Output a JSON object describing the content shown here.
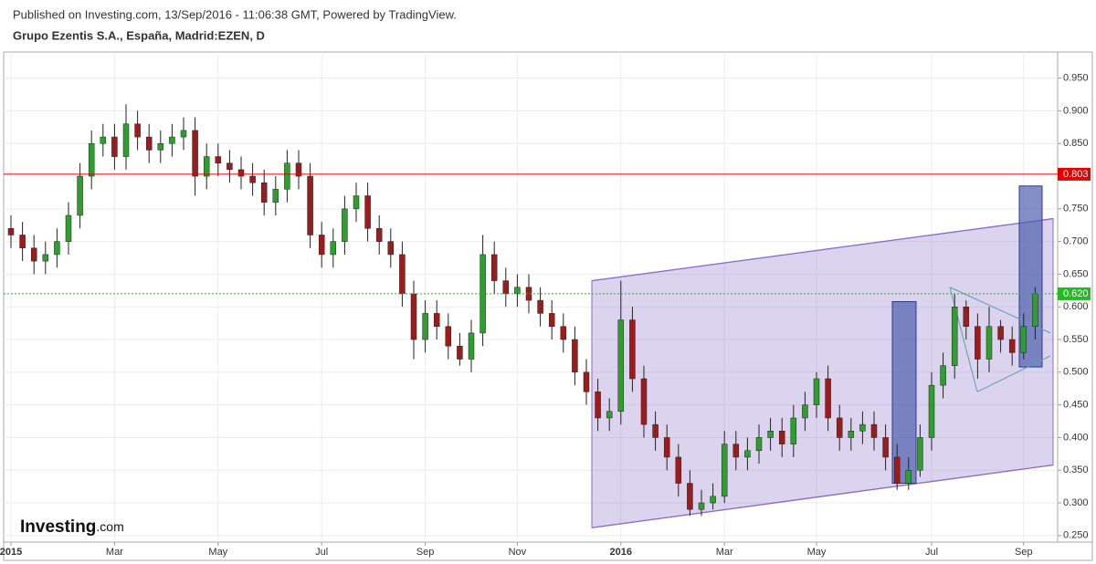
{
  "header": {
    "published": "Published on Investing.com, 13/Sep/2016 - 11:06:38 GMT, Powered by TradingView.",
    "symbol": "Grupo Ezentis S.A., España, Madrid:EZEN, D"
  },
  "logo": {
    "brand": "Investing",
    "suffix": ".com"
  },
  "chart_data": {
    "type": "candlestick",
    "categories": [
      "2015",
      null,
      null,
      null,
      null,
      null,
      null,
      null,
      null,
      "Mar",
      null,
      null,
      null,
      null,
      null,
      null,
      null,
      null,
      "May",
      null,
      null,
      null,
      null,
      null,
      null,
      null,
      null,
      "Jul",
      null,
      null,
      null,
      null,
      null,
      null,
      null,
      null,
      "Sep",
      null,
      null,
      null,
      null,
      null,
      null,
      null,
      "Nov",
      null,
      null,
      null,
      null,
      null,
      null,
      null,
      null,
      "2016",
      null,
      null,
      null,
      null,
      null,
      null,
      null,
      null,
      "Mar",
      null,
      null,
      null,
      null,
      null,
      null,
      null,
      "May",
      null,
      null,
      null,
      null,
      null,
      null,
      null,
      null,
      null,
      "Jul",
      null,
      null,
      null,
      null,
      null,
      null,
      null,
      "Sep",
      null
    ],
    "open": [
      0.72,
      0.71,
      0.69,
      0.67,
      0.68,
      0.7,
      0.74,
      0.8,
      0.85,
      0.86,
      0.83,
      0.88,
      0.86,
      0.84,
      0.85,
      0.86,
      0.87,
      0.8,
      0.83,
      0.82,
      0.81,
      0.8,
      0.79,
      0.76,
      0.78,
      0.82,
      0.8,
      0.71,
      0.68,
      0.7,
      0.75,
      0.77,
      0.72,
      0.7,
      0.68,
      0.62,
      0.55,
      0.59,
      0.57,
      0.54,
      0.52,
      0.56,
      0.68,
      0.64,
      0.62,
      0.63,
      0.61,
      0.59,
      0.57,
      0.55,
      0.5,
      0.47,
      0.43,
      0.44,
      0.58,
      0.49,
      0.42,
      0.4,
      0.37,
      0.33,
      0.29,
      0.3,
      0.31,
      0.39,
      0.37,
      0.38,
      0.4,
      0.41,
      0.39,
      0.43,
      0.45,
      0.49,
      0.43,
      0.4,
      0.41,
      0.42,
      0.4,
      0.37,
      0.33,
      0.35,
      0.4,
      0.48,
      0.51,
      0.6,
      0.57,
      0.52,
      0.57,
      0.55,
      0.53,
      0.57
    ],
    "high": [
      0.74,
      0.73,
      0.71,
      0.7,
      0.72,
      0.76,
      0.82,
      0.87,
      0.88,
      0.88,
      0.91,
      0.9,
      0.88,
      0.87,
      0.88,
      0.89,
      0.89,
      0.85,
      0.85,
      0.84,
      0.83,
      0.82,
      0.81,
      0.8,
      0.84,
      0.84,
      0.82,
      0.73,
      0.72,
      0.77,
      0.79,
      0.79,
      0.74,
      0.72,
      0.7,
      0.64,
      0.61,
      0.61,
      0.59,
      0.56,
      0.58,
      0.71,
      0.7,
      0.66,
      0.65,
      0.65,
      0.63,
      0.61,
      0.59,
      0.57,
      0.52,
      0.49,
      0.46,
      0.64,
      0.6,
      0.51,
      0.44,
      0.42,
      0.39,
      0.35,
      0.32,
      0.33,
      0.41,
      0.41,
      0.4,
      0.42,
      0.43,
      0.43,
      0.45,
      0.47,
      0.5,
      0.51,
      0.45,
      0.43,
      0.44,
      0.44,
      0.42,
      0.39,
      0.37,
      0.42,
      0.5,
      0.53,
      0.62,
      0.61,
      0.59,
      0.6,
      0.58,
      0.57,
      0.59,
      0.63
    ],
    "low": [
      0.69,
      0.67,
      0.65,
      0.65,
      0.66,
      0.68,
      0.72,
      0.78,
      0.83,
      0.81,
      0.81,
      0.84,
      0.82,
      0.82,
      0.83,
      0.84,
      0.77,
      0.78,
      0.8,
      0.79,
      0.78,
      0.77,
      0.74,
      0.74,
      0.76,
      0.78,
      0.69,
      0.66,
      0.66,
      0.68,
      0.73,
      0.7,
      0.68,
      0.66,
      0.6,
      0.52,
      0.53,
      0.55,
      0.52,
      0.51,
      0.5,
      0.54,
      0.62,
      0.6,
      0.6,
      0.59,
      0.57,
      0.55,
      0.53,
      0.48,
      0.45,
      0.41,
      0.41,
      0.42,
      0.47,
      0.4,
      0.38,
      0.35,
      0.31,
      0.28,
      0.28,
      0.29,
      0.3,
      0.35,
      0.35,
      0.36,
      0.38,
      0.37,
      0.37,
      0.41,
      0.43,
      0.41,
      0.38,
      0.38,
      0.39,
      0.38,
      0.35,
      0.32,
      0.32,
      0.34,
      0.38,
      0.46,
      0.49,
      0.55,
      0.49,
      0.5,
      0.53,
      0.51,
      0.52,
      0.55
    ],
    "close": [
      0.71,
      0.69,
      0.67,
      0.68,
      0.7,
      0.74,
      0.8,
      0.85,
      0.86,
      0.83,
      0.88,
      0.86,
      0.84,
      0.85,
      0.86,
      0.87,
      0.8,
      0.83,
      0.82,
      0.81,
      0.8,
      0.79,
      0.76,
      0.78,
      0.82,
      0.8,
      0.71,
      0.68,
      0.7,
      0.75,
      0.77,
      0.72,
      0.7,
      0.68,
      0.62,
      0.55,
      0.59,
      0.57,
      0.54,
      0.52,
      0.56,
      0.68,
      0.64,
      0.62,
      0.63,
      0.61,
      0.59,
      0.57,
      0.55,
      0.5,
      0.47,
      0.43,
      0.44,
      0.58,
      0.49,
      0.42,
      0.4,
      0.37,
      0.33,
      0.29,
      0.3,
      0.31,
      0.39,
      0.37,
      0.38,
      0.4,
      0.41,
      0.39,
      0.43,
      0.45,
      0.49,
      0.43,
      0.4,
      0.41,
      0.42,
      0.4,
      0.37,
      0.33,
      0.35,
      0.4,
      0.48,
      0.51,
      0.6,
      0.57,
      0.52,
      0.57,
      0.55,
      0.53,
      0.57,
      0.62
    ],
    "up_color": "#2e9e2e",
    "down_color": "#9b1c1c",
    "ylim": [
      0.24,
      0.99
    ],
    "yticks": [
      {
        "value": 0.25,
        "label": "0.250"
      },
      {
        "value": 0.3,
        "label": "0.300"
      },
      {
        "value": 0.35,
        "label": "0.350"
      },
      {
        "value": 0.4,
        "label": "0.400"
      },
      {
        "value": 0.45,
        "label": "0.450"
      },
      {
        "value": 0.5,
        "label": "0.500"
      },
      {
        "value": 0.55,
        "label": "0.550"
      },
      {
        "value": 0.6,
        "label": "0.600"
      },
      {
        "value": 0.65,
        "label": "0.650"
      },
      {
        "value": 0.7,
        "label": "0.700"
      },
      {
        "value": 0.75,
        "label": "0.750"
      },
      {
        "value": 0.8,
        "label": "0.800"
      },
      {
        "value": 0.85,
        "label": "0.850"
      },
      {
        "value": 0.9,
        "label": "0.900"
      },
      {
        "value": 0.95,
        "label": "0.950"
      }
    ],
    "grid": true,
    "hlines": [
      {
        "value": 0.803,
        "label": "0.803",
        "color": "#e00000"
      },
      {
        "value": 0.62,
        "label": "0.620",
        "color": "#22bb22"
      }
    ],
    "channel": {
      "upper": [
        0.64,
        0.735
      ],
      "lower": [
        0.262,
        0.358
      ],
      "color": "#8a6cc8"
    },
    "boxes": [
      [
        0.608,
        0.33
      ],
      [
        0.785,
        0.508
      ]
    ],
    "box_color": "#4f5fae",
    "triangle": {
      "upper": [
        0.63,
        0.56
      ],
      "lower": [
        0.47,
        0.525
      ]
    }
  }
}
